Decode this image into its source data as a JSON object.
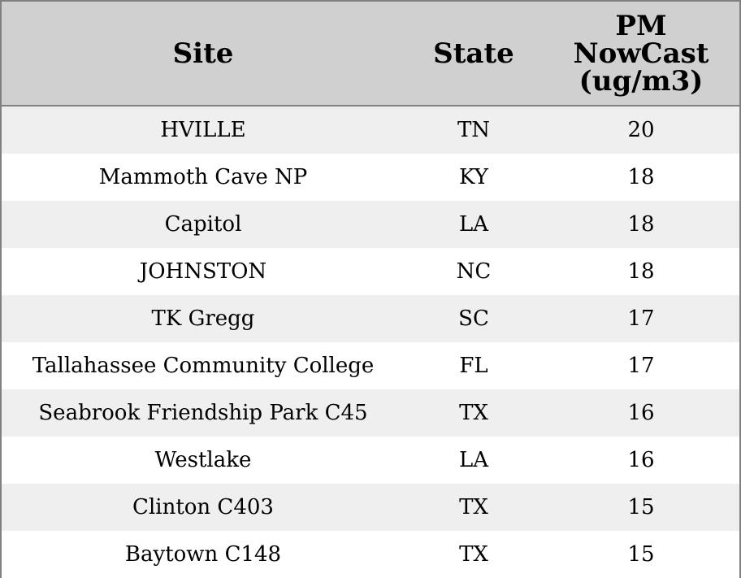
{
  "chart_data": {
    "type": "table",
    "columns": [
      "Site",
      "State",
      "PM\nNowCast\n(ug/m3)"
    ],
    "rows": [
      {
        "site": "HVILLE",
        "state": "TN",
        "pm": "20"
      },
      {
        "site": "Mammoth Cave NP",
        "state": "KY",
        "pm": "18"
      },
      {
        "site": "Capitol",
        "state": "LA",
        "pm": "18"
      },
      {
        "site": "JOHNSTON",
        "state": "NC",
        "pm": "18"
      },
      {
        "site": "TK Gregg",
        "state": "SC",
        "pm": "17"
      },
      {
        "site": "Tallahassee Community College",
        "state": "FL",
        "pm": "17"
      },
      {
        "site": "Seabrook Friendship Park C45",
        "state": "TX",
        "pm": "16"
      },
      {
        "site": "Westlake",
        "state": "LA",
        "pm": "16"
      },
      {
        "site": "Clinton C403",
        "state": "TX",
        "pm": "15"
      },
      {
        "site": "Baytown C148",
        "state": "TX",
        "pm": "15"
      }
    ]
  },
  "colors": {
    "header_background": "#d0d0d0",
    "row_stripe": "#efefef",
    "row_plain": "#ffffff",
    "border": "#808080"
  }
}
